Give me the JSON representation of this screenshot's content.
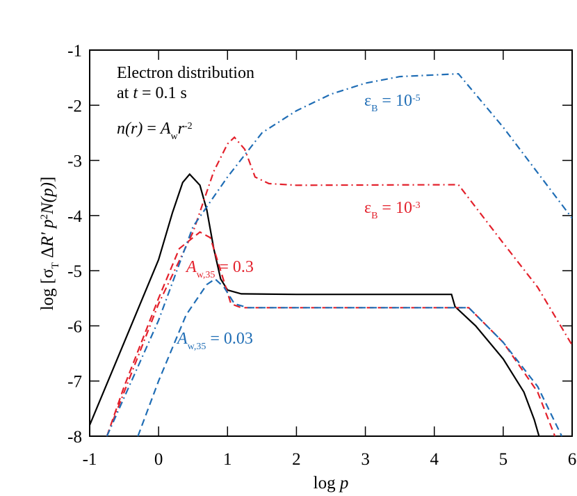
{
  "chart_data": {
    "type": "line",
    "xlabel": [
      {
        "text": "log  "
      },
      {
        "text": "p",
        "italic": true
      }
    ],
    "ylabel": [
      {
        "text": "log [σ"
      },
      {
        "text": "T",
        "shift": "sub"
      },
      {
        "text": " Δ"
      },
      {
        "text": "R'",
        "italic": true
      },
      {
        "text": " "
      },
      {
        "text": "p",
        "italic": true
      },
      {
        "text": "2",
        "shift": "super"
      },
      {
        "text": "N(p)",
        "italic": true
      },
      {
        "text": "]"
      }
    ],
    "xlim": [
      -1,
      6
    ],
    "ylim": [
      -8,
      -1
    ],
    "xticks": [
      -1,
      0,
      1,
      2,
      3,
      4,
      5,
      6
    ],
    "yticks": [
      -1,
      -2,
      -3,
      -4,
      -5,
      -6,
      -7,
      -8
    ],
    "series": [
      {
        "color": "#000000",
        "dash": "solid",
        "x": [
          -1,
          -0.5,
          0,
          0.2,
          0.35,
          0.45,
          0.6,
          0.7,
          0.8,
          0.9,
          1.0,
          1.2,
          2,
          4.25,
          4.3,
          4.6,
          5.0,
          5.3,
          5.45,
          5.52
        ],
        "values": [
          -7.8,
          -6.3,
          -4.8,
          -3.95,
          -3.4,
          -3.25,
          -3.45,
          -3.9,
          -4.6,
          -5.15,
          -5.35,
          -5.42,
          -5.43,
          -5.43,
          -5.65,
          -6.0,
          -6.6,
          -7.2,
          -7.7,
          -8
        ]
      },
      {
        "color": "#e3202b",
        "dash": "dash",
        "x": [
          -0.75,
          -0.5,
          0,
          0.3,
          0.6,
          0.75,
          0.9,
          1.05,
          1.2,
          4.5,
          5.0,
          5.5,
          5.75
        ],
        "values": [
          -8,
          -7.1,
          -5.5,
          -4.6,
          -4.3,
          -4.4,
          -5.0,
          -5.6,
          -5.67,
          -5.67,
          -6.3,
          -7.2,
          -8
        ]
      },
      {
        "color": "#1f6db5",
        "dash": "dash",
        "x": [
          -0.3,
          0,
          0.4,
          0.7,
          0.82,
          0.95,
          1.1,
          1.3,
          4.5,
          5.0,
          5.5,
          5.85
        ],
        "values": [
          -8,
          -7.0,
          -5.8,
          -5.25,
          -5.15,
          -5.3,
          -5.6,
          -5.67,
          -5.67,
          -6.3,
          -7.1,
          -8
        ]
      },
      {
        "color": "#e3202b",
        "dash": "dashdot",
        "x": [
          -0.75,
          0,
          0.5,
          0.8,
          1.0,
          1.1,
          1.25,
          1.4,
          1.6,
          2,
          4.35,
          5.0,
          5.5,
          6
        ],
        "values": [
          -8,
          -5.6,
          -4.3,
          -3.2,
          -2.7,
          -2.58,
          -2.8,
          -3.3,
          -3.42,
          -3.45,
          -3.44,
          -4.5,
          -5.3,
          -6.35
        ]
      },
      {
        "color": "#1f6db5",
        "dash": "dashdot",
        "x": [
          -0.75,
          0,
          0.5,
          1,
          1.5,
          2,
          2.5,
          3,
          3.5,
          4.35,
          5,
          6
        ],
        "values": [
          -8,
          -5.9,
          -4.2,
          -3.3,
          -2.5,
          -2.1,
          -1.8,
          -1.6,
          -1.48,
          -1.43,
          -2.4,
          -4.05
        ]
      }
    ],
    "annotations": [
      {
        "color": "#000000",
        "text": [
          {
            "text": "Electron distribution"
          }
        ]
      },
      {
        "color": "#000000",
        "text": [
          {
            "text": "at "
          },
          {
            "text": "t",
            "italic": true
          },
          {
            "text": " = 0.1 s"
          }
        ]
      },
      {
        "color": "#000000",
        "text": [
          {
            "text": "n(r)",
            "italic": true
          },
          {
            "text": " = "
          },
          {
            "text": "A",
            "italic": true
          },
          {
            "text": "w",
            "shift": "sub"
          },
          {
            "text": "r",
            "italic": true
          },
          {
            "text": "-2",
            "shift": "super"
          }
        ]
      },
      {
        "color": "#1f6db5",
        "text": [
          {
            "text": "ε"
          },
          {
            "text": "B",
            "shift": "sub"
          },
          {
            "text": " = 10"
          },
          {
            "text": "-5",
            "shift": "super"
          }
        ]
      },
      {
        "color": "#e3202b",
        "text": [
          {
            "text": "ε"
          },
          {
            "text": "B",
            "shift": "sub"
          },
          {
            "text": " = 10"
          },
          {
            "text": "-3",
            "shift": "super"
          }
        ]
      },
      {
        "color": "#e3202b",
        "text": [
          {
            "text": "A",
            "italic": true
          },
          {
            "text": "w,35",
            "shift": "sub"
          },
          {
            "text": " = 0.3"
          }
        ]
      },
      {
        "color": "#1f6db5",
        "text": [
          {
            "text": "A",
            "italic": true
          },
          {
            "text": "w,35",
            "shift": "sub"
          },
          {
            "text": " = 0.03"
          }
        ]
      }
    ]
  }
}
